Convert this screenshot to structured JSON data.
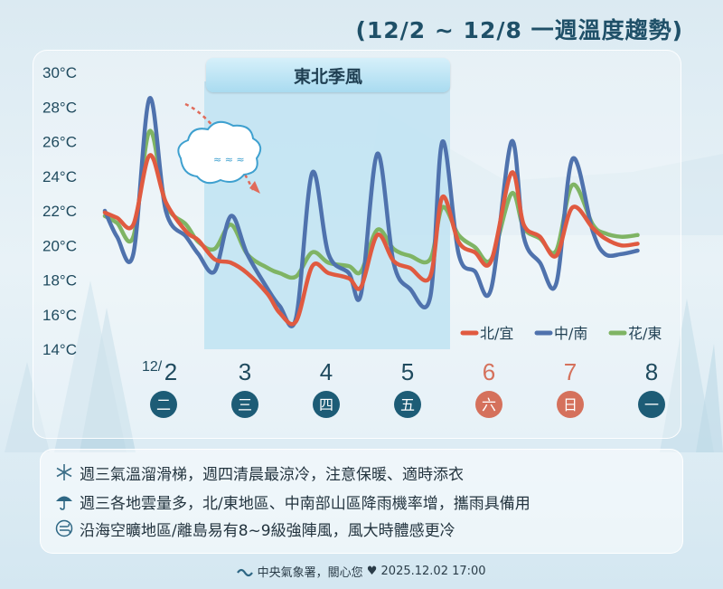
{
  "title": "(12/2 ~ 12/8 一週溫度趨勢)",
  "banner": "東北季風",
  "chart_data": {
    "type": "line",
    "ylim": [
      14,
      30
    ],
    "y_ticks": [
      "14°C",
      "16°C",
      "18°C",
      "20°C",
      "22°C",
      "24°C",
      "26°C",
      "28°C",
      "30°C"
    ],
    "day_labels": [
      "12/2",
      "3",
      "4",
      "5",
      "6",
      "7",
      "8"
    ],
    "weekday_labels": [
      "二",
      "三",
      "四",
      "五",
      "六",
      "日",
      "一"
    ],
    "weekend_flags": [
      false,
      false,
      false,
      false,
      true,
      true,
      false
    ],
    "x": [
      0,
      0.15,
      0.35,
      0.55,
      0.75,
      1,
      1.15,
      1.35,
      1.55,
      1.75,
      2,
      2.15,
      2.35,
      2.55,
      2.75,
      3,
      3.15,
      3.35,
      3.55,
      3.75,
      4,
      4.15,
      4.35,
      4.55,
      4.75,
      5,
      5.15,
      5.35,
      5.55,
      5.75,
      6,
      6.15,
      6.35,
      6.55
    ],
    "series": [
      {
        "name": "北/宜",
        "color": "#e05a40",
        "values": [
          21.9,
          21.6,
          21.2,
          25.2,
          22.5,
          20.8,
          20.3,
          19.2,
          19.0,
          18.4,
          17.2,
          16.1,
          15.6,
          18.8,
          18.4,
          18.1,
          17.6,
          20.6,
          19.1,
          18.7,
          18.2,
          22.8,
          20.2,
          19.6,
          19.1,
          24.2,
          21.2,
          20.5,
          19.4,
          22.2,
          21.0,
          20.4,
          20.0,
          20.1
        ]
      },
      {
        "name": "中/南",
        "color": "#4f72ad",
        "values": [
          22.0,
          20.5,
          19.5,
          28.5,
          22.0,
          20.5,
          19.5,
          18.5,
          21.7,
          19.5,
          17.5,
          16.5,
          15.8,
          24.2,
          19.5,
          18.4,
          17.2,
          25.3,
          19.0,
          17.5,
          17.0,
          26.0,
          19.5,
          18.5,
          17.5,
          26.0,
          20.5,
          19.0,
          17.8,
          25.0,
          20.8,
          19.5,
          19.5,
          19.7
        ]
      },
      {
        "name": "花/東",
        "color": "#7fb464",
        "values": [
          21.7,
          21.3,
          20.5,
          26.6,
          22.4,
          21.2,
          20.2,
          19.8,
          21.2,
          19.5,
          18.7,
          18.4,
          18.2,
          19.6,
          19.0,
          18.8,
          18.5,
          20.9,
          19.8,
          19.4,
          19.2,
          22.2,
          20.6,
          19.9,
          19.2,
          23.0,
          21.0,
          20.4,
          19.7,
          23.5,
          21.2,
          20.7,
          20.5,
          20.6
        ]
      }
    ]
  },
  "info": [
    {
      "icon": "snowflake-icon",
      "text": "週三氣溫溜滑梯，週四清晨最涼冷，注意保暖、適時添衣"
    },
    {
      "icon": "umbrella-icon",
      "text": "週三各地雲量多，北/東地區、中南部山區降雨機率增，攜雨具備用"
    },
    {
      "icon": "wind-icon",
      "text": "沿海空曠地區/離島易有8~9級強陣風，風大時體感更冷"
    }
  ],
  "footer": {
    "agency": "中央氣象署，關心您",
    "timestamp": "2025.12.02 17:00"
  },
  "colors": {
    "weekday_circle": "#1d5c76",
    "weekend_circle": "#d5715c",
    "weekday_text": "#1f4a5e",
    "weekend_text": "#d5715c"
  }
}
